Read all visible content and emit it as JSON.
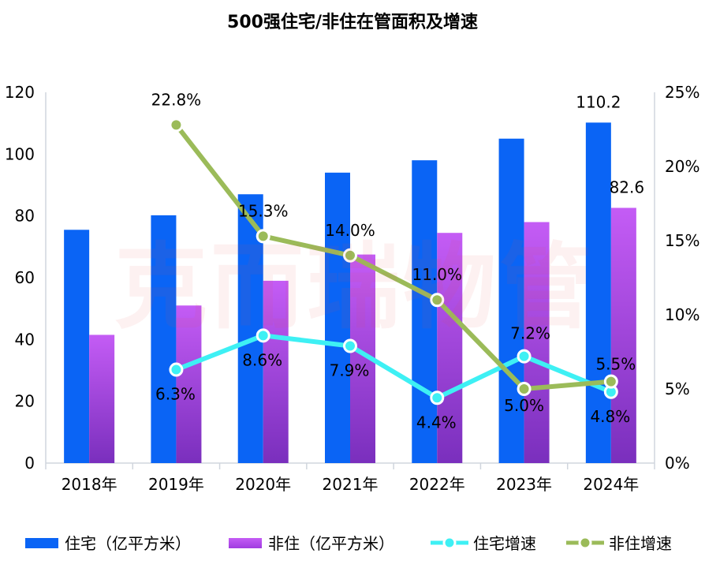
{
  "chart_data": {
    "type": "bar",
    "title": "500强住宅/非住在管面积及增速",
    "categories": [
      "2018年",
      "2019年",
      "2020年",
      "2021年",
      "2022年",
      "2023年",
      "2024年"
    ],
    "y_left": {
      "ylim": [
        0,
        120
      ],
      "ticks": [
        "0",
        "20",
        "40",
        "60",
        "80",
        "100",
        "120"
      ]
    },
    "y_right": {
      "ylim": [
        0,
        25
      ],
      "ticks": [
        "0%",
        "5%",
        "10%",
        "15%",
        "20%",
        "25%"
      ]
    },
    "series": [
      {
        "name": "住宅（亿平方米）",
        "type": "bar",
        "axis": "left",
        "color": "#0a64f5",
        "values": [
          75.5,
          80.2,
          87.0,
          94.0,
          98.0,
          105.0,
          110.2
        ],
        "data_labels": [
          null,
          null,
          null,
          null,
          null,
          null,
          "110.2"
        ]
      },
      {
        "name": "非住（亿平方米）",
        "type": "bar",
        "axis": "left",
        "color": "#b44cf0",
        "values": [
          41.5,
          51.0,
          59.0,
          67.5,
          74.5,
          78.0,
          82.6
        ],
        "data_labels": [
          null,
          null,
          null,
          null,
          null,
          null,
          "82.6"
        ]
      },
      {
        "name": "住宅增速",
        "type": "line",
        "axis": "right",
        "color": "#3ef0f4",
        "values": [
          null,
          6.3,
          8.6,
          7.9,
          4.4,
          7.2,
          4.8
        ],
        "data_labels": [
          null,
          "6.3%",
          "8.6%",
          "7.9%",
          "4.4%",
          "7.2%",
          "4.8%"
        ]
      },
      {
        "name": "非住增速",
        "type": "line",
        "axis": "right",
        "color": "#9bbb59",
        "values": [
          null,
          22.8,
          15.3,
          14.0,
          11.0,
          5.0,
          5.5
        ],
        "data_labels": [
          null,
          "22.8%",
          "15.3%",
          "14.0%",
          "11.0%",
          "5.0%",
          "5.5%"
        ]
      }
    ],
    "legend_position": "bottom",
    "grid": false
  },
  "watermark": "克而瑞物管",
  "colors": {
    "axis": "#d0d5dd",
    "text": "#000000"
  }
}
